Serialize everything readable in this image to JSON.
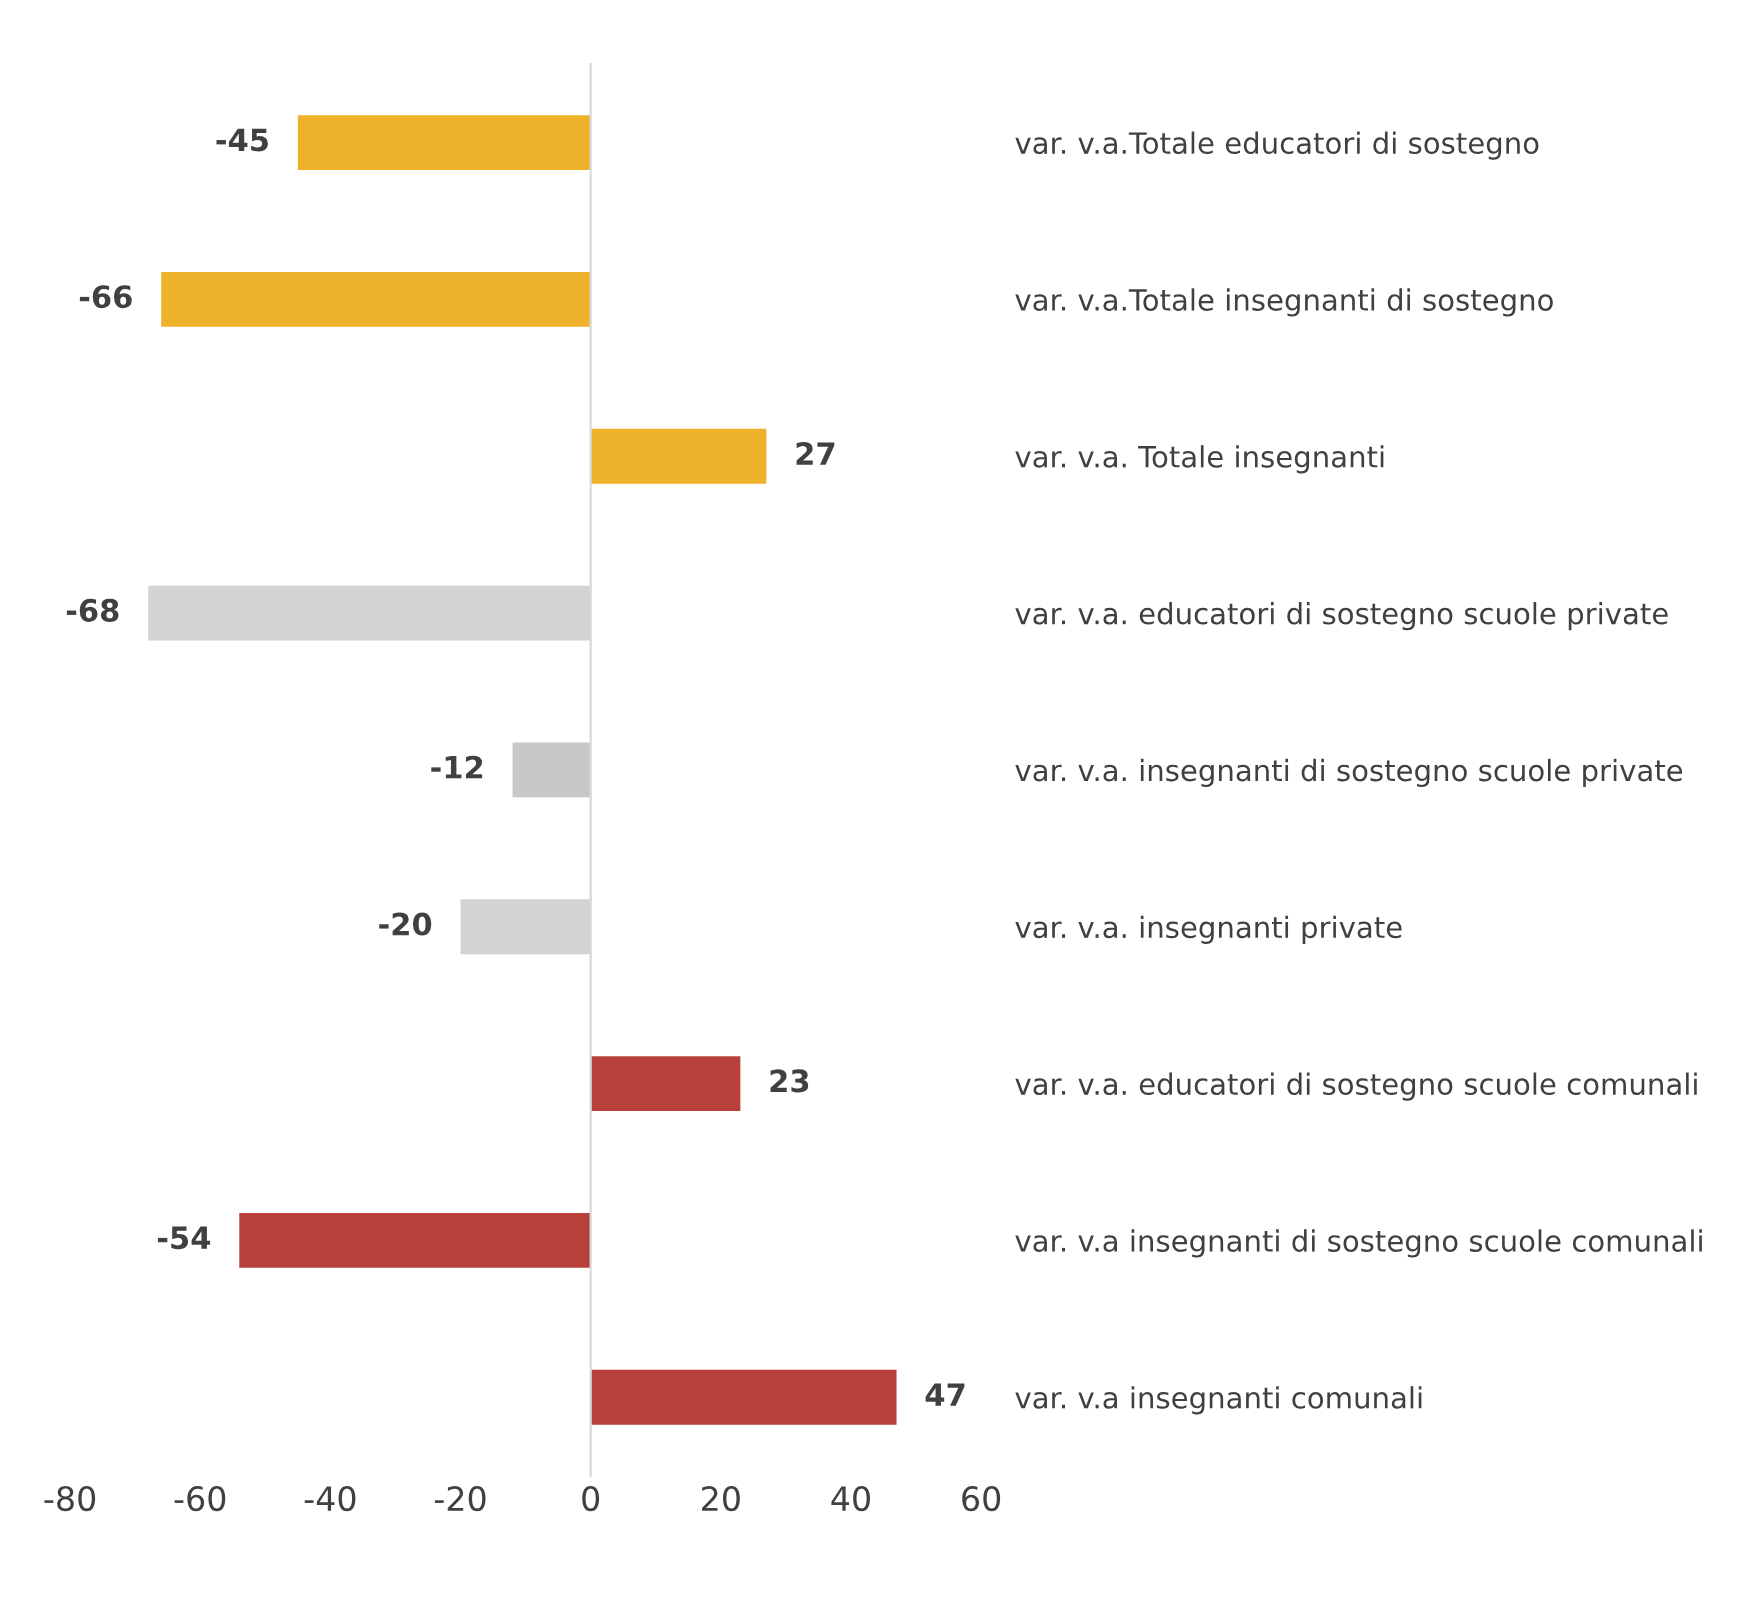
{
  "chart_data": {
    "type": "bar",
    "orientation": "horizontal",
    "categories": [
      "var. v.a.Totale educatori di sostegno",
      "var. v.a.Totale insegnanti di sostegno",
      "var. v.a. Totale insegnanti",
      "var. v.a. educatori di sostegno scuole private",
      "var. v.a. insegnanti di sostegno scuole private",
      "var. v.a. insegnanti private",
      "var. v.a. educatori di sostegno scuole comunali",
      "var. v.a insegnanti di sostegno scuole comunali",
      "var. v.a insegnanti comunali"
    ],
    "values": [
      -45,
      -66,
      27,
      -68,
      -12,
      -20,
      23,
      -54,
      47
    ],
    "colors": [
      "#eeb22a",
      "#eeb22a",
      "#eeb22a",
      "#d3d3d3",
      "#c8c8c8",
      "#d3d3d3",
      "#b8403a",
      "#b8403a",
      "#b8403a"
    ],
    "xlim": [
      -80,
      60
    ],
    "xticks": [
      -80,
      -60,
      -40,
      -20,
      0,
      20,
      40,
      60
    ],
    "data_labels": true,
    "legend": false
  }
}
